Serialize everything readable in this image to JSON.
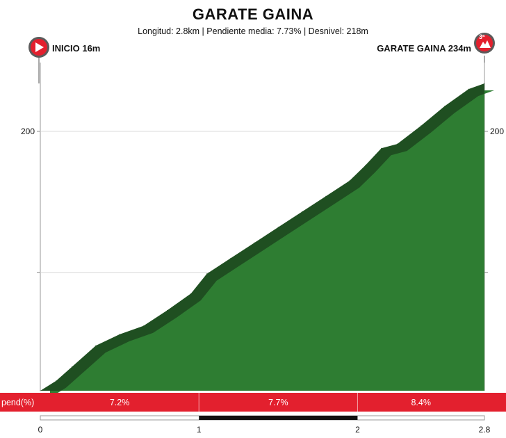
{
  "header": {
    "title": "GARATE GAINA",
    "subtitle": "Longitud: 2.8km | Pendiente media: 7.73% | Desnivel: 218m"
  },
  "markers": {
    "start": {
      "label": "INICIO 16m",
      "icon": "play-icon"
    },
    "end": {
      "label": "GARATE GAINA 234m",
      "icon": "mountain-icon",
      "category": "3ª"
    }
  },
  "colors": {
    "profile_fill": "#2e7d32",
    "profile_edge": "#1f4f21",
    "pend_band": "#e3202e",
    "marker_start": "#e3202e",
    "marker_end": "#e3202e"
  },
  "chart_data": {
    "type": "area",
    "title": "GARATE GAINA",
    "xlabel": "",
    "ylabel": "",
    "xlim": [
      0,
      2.8
    ],
    "ylim": [
      16,
      234
    ],
    "x_ticks": [
      "0",
      "1",
      "2",
      "2.8"
    ],
    "y_ticks": [
      "200"
    ],
    "grid": true,
    "points": [
      [
        0,
        16
      ],
      [
        0.1,
        23
      ],
      [
        0.2,
        33
      ],
      [
        0.35,
        48
      ],
      [
        0.5,
        56
      ],
      [
        0.65,
        62
      ],
      [
        0.8,
        73
      ],
      [
        0.95,
        85
      ],
      [
        1.05,
        99
      ],
      [
        1.2,
        110
      ],
      [
        1.35,
        121
      ],
      [
        1.5,
        132
      ],
      [
        1.65,
        143
      ],
      [
        1.8,
        154
      ],
      [
        1.95,
        165
      ],
      [
        2.05,
        176
      ],
      [
        2.15,
        188
      ],
      [
        2.25,
        191
      ],
      [
        2.4,
        204
      ],
      [
        2.55,
        218
      ],
      [
        2.7,
        230
      ],
      [
        2.8,
        234
      ]
    ],
    "pend_label": "pend(%)",
    "pend_segments": [
      {
        "from": 0,
        "to": 1,
        "label": "7.2%"
      },
      {
        "from": 1,
        "to": 2,
        "label": "7.7%"
      },
      {
        "from": 2,
        "to": 2.8,
        "label": "8.4%"
      }
    ]
  }
}
